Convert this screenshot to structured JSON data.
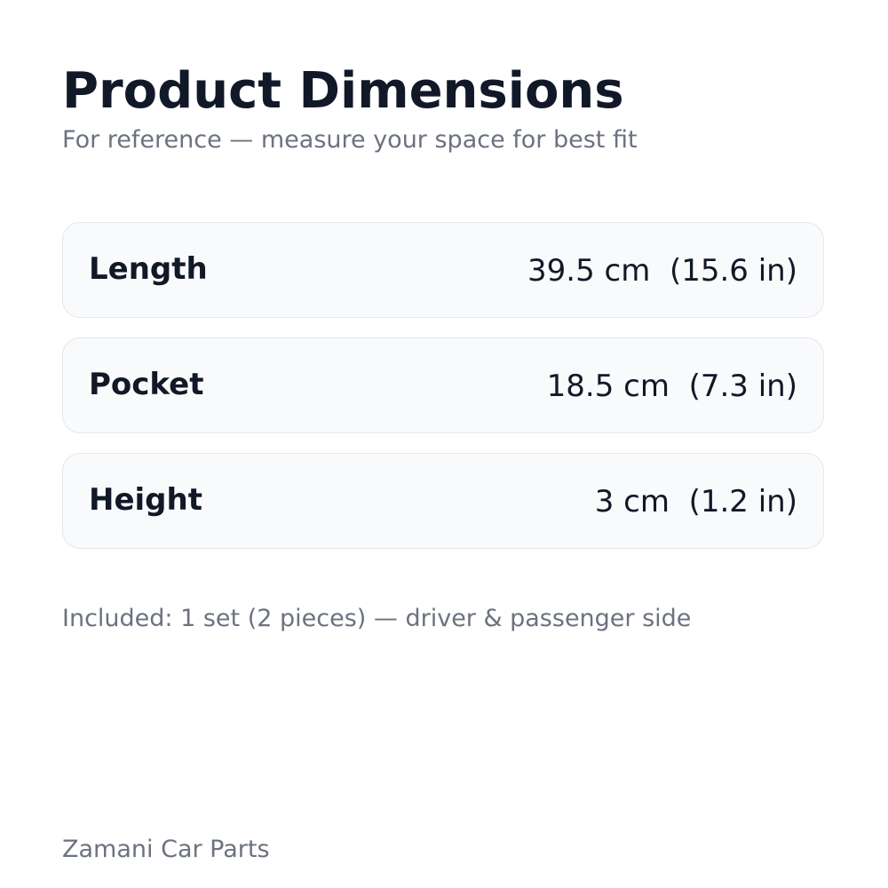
{
  "title": "Product Dimensions",
  "subtitle": "For reference — measure your space for best fit",
  "rows": [
    {
      "label": "Length",
      "value": "39.5 cm  (15.6 in)"
    },
    {
      "label": "Pocket",
      "value": "18.5 cm  (7.3 in)"
    },
    {
      "label": "Height",
      "value": "3 cm  (1.2 in)"
    }
  ],
  "note": "Included: 1 set (2 pieces) — driver & passenger side",
  "brand": "Zamani Car Parts"
}
